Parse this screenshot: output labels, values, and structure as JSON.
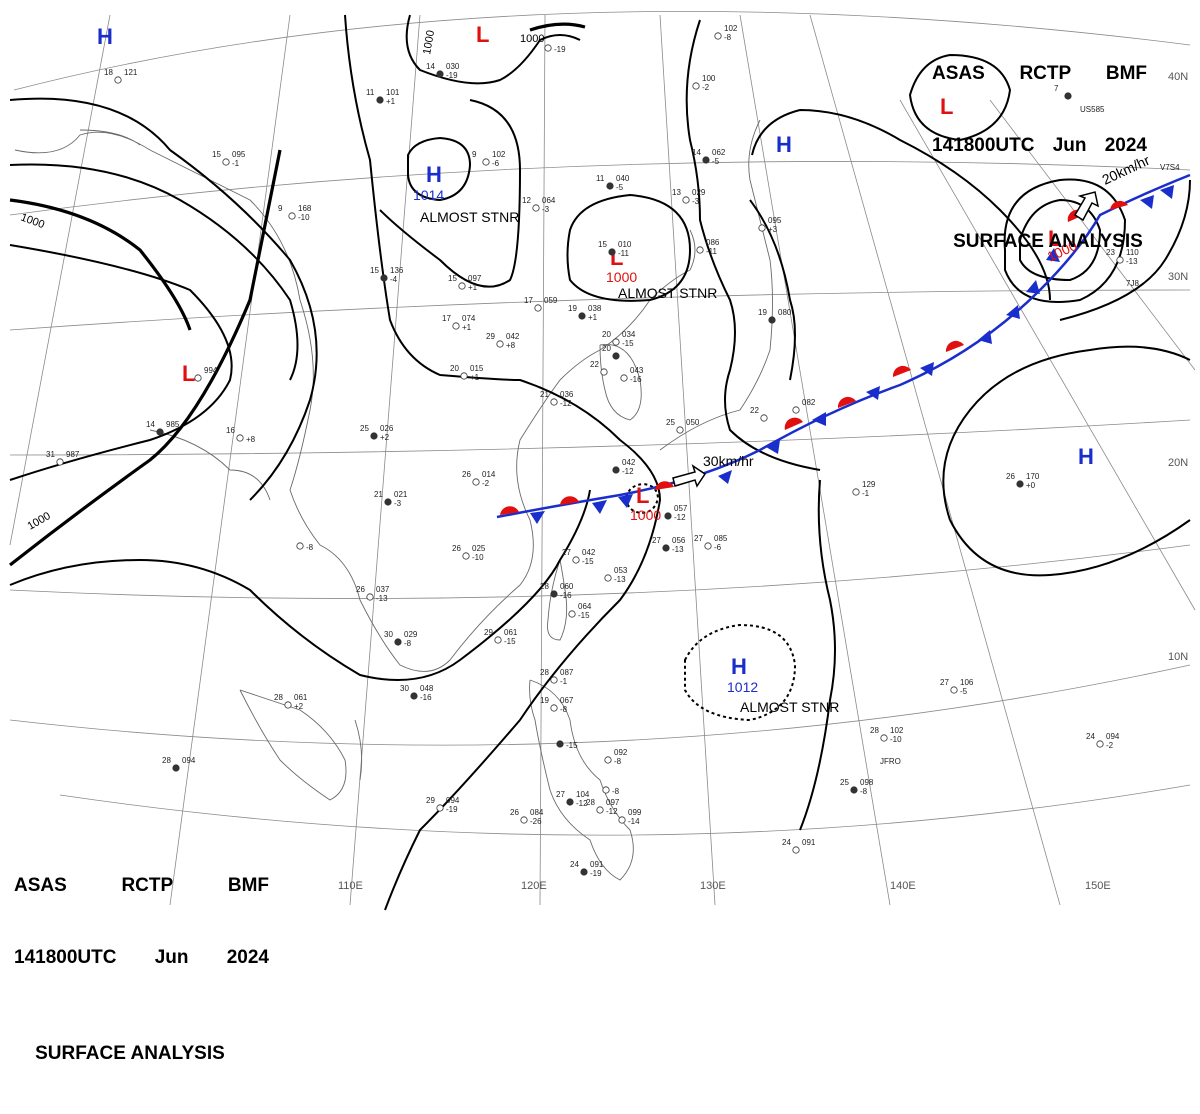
{
  "header": {
    "line1": [
      "ASAS",
      "RCTP",
      "BMF"
    ],
    "line2": [
      "141800UTC",
      "Jun",
      "2024"
    ],
    "line3": "SURFACE ANALYSIS"
  },
  "longitude_labels": [
    "110E",
    "120E",
    "130E",
    "140E",
    "150E"
  ],
  "latitude_labels": [
    "40N",
    "30N",
    "20N",
    "10N"
  ],
  "isobar_labels": [
    "1000",
    "1000",
    "1000",
    "1000"
  ],
  "centers": [
    {
      "type": "H",
      "pressure": "",
      "note": ""
    },
    {
      "type": "L",
      "pressure": "",
      "note": ""
    },
    {
      "type": "L",
      "pressure": "",
      "note": ""
    },
    {
      "type": "H",
      "pressure": "1014",
      "note": "ALMOST STNR"
    },
    {
      "type": "L",
      "pressure": "1000",
      "note": "ALMOST STNR"
    },
    {
      "type": "H",
      "pressure": "",
      "note": ""
    },
    {
      "type": "L",
      "pressure": "1000",
      "note": ""
    },
    {
      "type": "L",
      "pressure": "1000",
      "note": ""
    },
    {
      "type": "H",
      "pressure": "",
      "note": ""
    },
    {
      "type": "H",
      "pressure": "1012",
      "note": "ALMOST STNR"
    },
    {
      "type": "L",
      "pressure": "",
      "note": ""
    }
  ],
  "motion_vectors": [
    "30km/hr",
    "20km/hr"
  ],
  "stations": [
    {
      "t": "14",
      "p": "030",
      "d": "-19"
    },
    {
      "t": "",
      "p": "",
      "d": "-19"
    },
    {
      "t": "15",
      "p": "095",
      "d": "-1"
    },
    {
      "t": "11",
      "p": "101",
      "d": "+1"
    },
    {
      "t": "9",
      "p": "102",
      "d": "-6"
    },
    {
      "t": "12",
      "p": "064",
      "d": "-3"
    },
    {
      "t": "11",
      "p": "040",
      "d": "-5"
    },
    {
      "t": "13",
      "p": "029",
      "d": "-3"
    },
    {
      "t": "9",
      "p": "168",
      "d": "-10"
    },
    {
      "t": "15",
      "p": "136",
      "d": "-4"
    },
    {
      "t": "15",
      "p": "097",
      "d": "+1"
    },
    {
      "t": "17",
      "p": "074",
      "d": "+1"
    },
    {
      "t": "15",
      "p": "010",
      "d": "-11"
    },
    {
      "t": "",
      "p": "086",
      "d": "-11"
    },
    {
      "t": "17",
      "p": "059",
      "d": ""
    },
    {
      "t": "19",
      "p": "038",
      "d": "+1"
    },
    {
      "t": "29",
      "p": "042",
      "d": "+8"
    },
    {
      "t": "20",
      "p": "034",
      "d": "-15"
    },
    {
      "t": "20",
      "p": "",
      "d": ""
    },
    {
      "t": "",
      "p": "043",
      "d": "-16"
    },
    {
      "t": "22",
      "p": "",
      "d": ""
    },
    {
      "t": "19",
      "p": "080",
      "d": ""
    },
    {
      "t": "",
      "p": "095",
      "d": "+3"
    },
    {
      "t": "",
      "p": "100",
      "d": "-2"
    },
    {
      "t": "14",
      "p": "062",
      "d": "-5"
    },
    {
      "t": "20",
      "p": "015",
      "d": "+1"
    },
    {
      "t": "",
      "p": "994",
      "d": ""
    },
    {
      "t": "14",
      "p": "985",
      "d": ""
    },
    {
      "t": "31",
      "p": "987",
      "d": ""
    },
    {
      "t": "16",
      "p": "",
      "d": "+8"
    },
    {
      "t": "25",
      "p": "026",
      "d": "+2"
    },
    {
      "t": "21",
      "p": "036",
      "d": "-12"
    },
    {
      "t": "26",
      "p": "014",
      "d": "-2"
    },
    {
      "t": "21",
      "p": "021",
      "d": "-3"
    },
    {
      "t": "",
      "p": "",
      "d": "-8"
    },
    {
      "t": "25",
      "p": "050",
      "d": ""
    },
    {
      "t": "",
      "p": "057",
      "d": "-12"
    },
    {
      "t": "",
      "p": "082",
      "d": ""
    },
    {
      "t": "22",
      "p": "",
      "d": ""
    },
    {
      "t": "",
      "p": "042",
      "d": "-12"
    },
    {
      "t": "26",
      "p": "025",
      "d": "-10"
    },
    {
      "t": "27",
      "p": "042",
      "d": "-15"
    },
    {
      "t": "27",
      "p": "056",
      "d": "-13"
    },
    {
      "t": "27",
      "p": "085",
      "d": "-6"
    },
    {
      "t": "",
      "p": "053",
      "d": "-13"
    },
    {
      "t": "28",
      "p": "060",
      "d": "-16"
    },
    {
      "t": "",
      "p": "064",
      "d": "-15"
    },
    {
      "t": "26",
      "p": "037",
      "d": "-13"
    },
    {
      "t": "30",
      "p": "029",
      "d": "-8"
    },
    {
      "t": "29",
      "p": "061",
      "d": "-15"
    },
    {
      "t": "28",
      "p": "061",
      "d": "+2"
    },
    {
      "t": "30",
      "p": "048",
      "d": "-16"
    },
    {
      "t": "28",
      "p": "087",
      "d": "-1"
    },
    {
      "t": "19",
      "p": "067",
      "d": "-8"
    },
    {
      "t": "",
      "p": "",
      "d": "-15"
    },
    {
      "t": "",
      "p": "092",
      "d": "-8"
    },
    {
      "t": "",
      "p": "",
      "d": "-8"
    },
    {
      "t": "28",
      "p": "094",
      "d": ""
    },
    {
      "t": "29",
      "p": "094",
      "d": "-19"
    },
    {
      "t": "26",
      "p": "084",
      "d": "-26"
    },
    {
      "t": "27",
      "p": "104",
      "d": "-12"
    },
    {
      "t": "28",
      "p": "097",
      "d": "-12"
    },
    {
      "t": "",
      "p": "099",
      "d": "-14"
    },
    {
      "t": "24",
      "p": "091",
      "d": "-19"
    },
    {
      "t": "24",
      "p": "091",
      "d": ""
    },
    {
      "t": "",
      "p": "129",
      "d": "-1"
    },
    {
      "t": "26",
      "p": "170",
      "d": "+0"
    },
    {
      "t": "27",
      "p": "106",
      "d": "-5"
    },
    {
      "t": "28",
      "p": "102",
      "d": "-10"
    },
    {
      "t": "25",
      "p": "098",
      "d": "-8"
    },
    {
      "t": "24",
      "p": "094",
      "d": "-2"
    },
    {
      "t": "",
      "p": "102",
      "d": "-8"
    },
    {
      "t": "7",
      "p": "",
      "d": ""
    },
    {
      "t": "23",
      "p": "110",
      "d": "-13"
    },
    {
      "t": "18",
      "p": "121",
      "d": ""
    }
  ],
  "station_codes": [
    "US585",
    "V7S4",
    "7J8",
    "JFRO"
  ]
}
